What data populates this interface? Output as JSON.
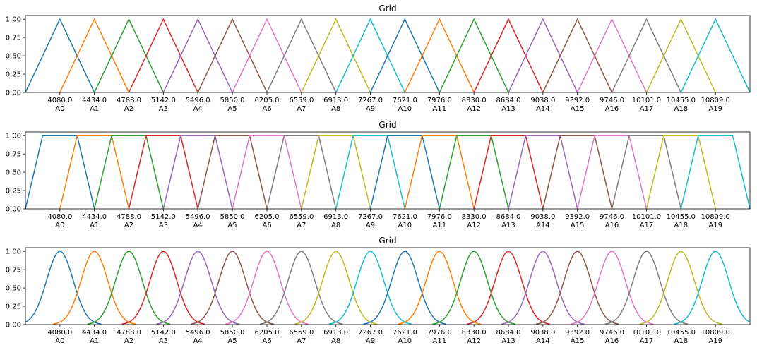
{
  "colors": [
    "#1f77b4",
    "#ff7f0e",
    "#2ca02c",
    "#d62728",
    "#9467bd",
    "#8c564b",
    "#e377c2",
    "#7f7f7f",
    "#bcbd22",
    "#17becf"
  ],
  "chart_data": [
    {
      "type": "line",
      "shape": "triangular",
      "title": "Grid",
      "xlabel": "",
      "ylabel": "",
      "xlim": [
        3726,
        11163
      ],
      "ylim": [
        0,
        1.05
      ],
      "yticks": [
        "0.00",
        "0.25",
        "0.50",
        "0.75",
        "1.00"
      ],
      "ytick_values": [
        0,
        0.25,
        0.5,
        0.75,
        1.0
      ],
      "centers": [
        4080.0,
        4434.0,
        4788.0,
        5142.0,
        5496.0,
        5850.0,
        6205.0,
        6559.0,
        6913.0,
        7267.0,
        7621.0,
        7976.0,
        8330.0,
        8684.0,
        9038.0,
        9392.0,
        9746.0,
        10101.0,
        10455.0,
        10809.0
      ],
      "tick_labels": [
        "4080.0\nA0",
        "4434.0\nA1",
        "4788.0\nA2",
        "5142.0\nA3",
        "5496.0\nA4",
        "5850.0\nA5",
        "6205.0\nA6",
        "6559.0\nA7",
        "6913.0\nA8",
        "7267.0\nA9",
        "7621.0\nA10",
        "7976.0\nA11",
        "8330.0\nA12",
        "8684.0\nA13",
        "9038.0\nA14",
        "9392.0\nA15",
        "9746.0\nA16",
        "10101.0\nA17",
        "10455.0\nA18",
        "10809.0\nA19"
      ],
      "series_note": "20 series A0..A19; each triangle peaks (1.0) at its center and is 0 at neighboring centers"
    },
    {
      "type": "line",
      "shape": "trapezoidal",
      "title": "Grid",
      "xlabel": "",
      "ylabel": "",
      "xlim": [
        3726,
        11163
      ],
      "ylim": [
        0,
        1.05
      ],
      "yticks": [
        "0.00",
        "0.25",
        "0.50",
        "0.75",
        "1.00"
      ],
      "ytick_values": [
        0,
        0.25,
        0.5,
        0.75,
        1.0
      ],
      "centers": [
        4080.0,
        4434.0,
        4788.0,
        5142.0,
        5496.0,
        5850.0,
        6205.0,
        6559.0,
        6913.0,
        7267.0,
        7621.0,
        7976.0,
        8330.0,
        8684.0,
        9038.0,
        9392.0,
        9746.0,
        10101.0,
        10455.0,
        10809.0
      ],
      "tick_labels": [
        "4080.0\nA0",
        "4434.0\nA1",
        "4788.0\nA2",
        "5142.0\nA3",
        "5496.0\nA4",
        "5850.0\nA5",
        "6205.0\nA6",
        "6559.0\nA7",
        "6913.0\nA8",
        "7267.0\nA9",
        "7621.0\nA10",
        "7976.0\nA11",
        "8330.0\nA12",
        "8684.0\nA13",
        "9038.0\nA14",
        "9392.0\nA15",
        "9746.0\nA16",
        "10101.0\nA17",
        "10455.0\nA18",
        "10809.0\nA19"
      ],
      "series_note": "20 series A0..A19; each trapezoid has a flat top of 1.0 and reaches 0 at neighboring centers"
    },
    {
      "type": "line",
      "shape": "gaussian",
      "title": "Grid",
      "xlabel": "",
      "ylabel": "",
      "xlim": [
        3726,
        11163
      ],
      "ylim": [
        0,
        1.05
      ],
      "yticks": [
        "0.00",
        "0.25",
        "0.50",
        "0.75",
        "1.00"
      ],
      "ytick_values": [
        0,
        0.25,
        0.5,
        0.75,
        1.0
      ],
      "centers": [
        4080.0,
        4434.0,
        4788.0,
        5142.0,
        5496.0,
        5850.0,
        6205.0,
        6559.0,
        6913.0,
        7267.0,
        7621.0,
        7976.0,
        8330.0,
        8684.0,
        9038.0,
        9392.0,
        9746.0,
        10101.0,
        10455.0,
        10809.0
      ],
      "tick_labels": [
        "4080.0\nA0",
        "4434.0\nA1",
        "4788.0\nA2",
        "5142.0\nA3",
        "5496.0\nA4",
        "5850.0\nA5",
        "6205.0\nA6",
        "6559.0\nA7",
        "6913.0\nA8",
        "7267.0\nA9",
        "7621.0\nA10",
        "7976.0\nA11",
        "8330.0\nA12",
        "8684.0\nA13",
        "9038.0\nA14",
        "9392.0\nA15",
        "9746.0\nA16",
        "10101.0\nA17",
        "10455.0\nA18",
        "10809.0\nA19"
      ],
      "series_note": "20 series A0..A19; each bell curve peaks (1.0) at its center and nears 0 at neighboring centers"
    }
  ]
}
